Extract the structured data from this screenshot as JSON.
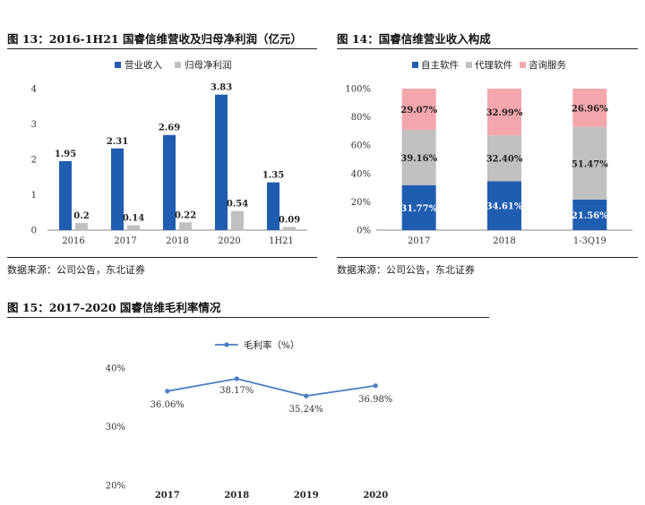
{
  "figure13": {
    "title": "图 13：2016-1H21 国睿信维营收及归母净利润（亿元）",
    "source": "数据来源：公司公告，东北证券"
  },
  "figure14": {
    "title": "图 14：国睿信维营业收入构成",
    "source": "数据来源：公司公告，东北证券"
  },
  "figure15": {
    "title": "图 15：2017-2020 国睿信维毛利率情况"
  },
  "colors": {
    "revenue": "#1f5db0",
    "profit": "#c0c0c0",
    "own_software": "#1f5db0",
    "agency_software": "#c0c0c0",
    "consulting": "#f4a6ad",
    "line": "#4a7fc4"
  },
  "chart_data": [
    {
      "type": "bar",
      "categories": [
        "2016",
        "2017",
        "2018",
        "2020",
        "1H21"
      ],
      "series": [
        {
          "name": "营业收入",
          "values": [
            1.95,
            2.31,
            2.69,
            3.83,
            1.35
          ],
          "labels": [
            "1.95",
            "2.31",
            "2.69",
            "3.83",
            "1.35"
          ]
        },
        {
          "name": "归母净利润",
          "values": [
            0.2,
            0.14,
            0.22,
            0.54,
            0.09
          ],
          "labels": [
            "0.2",
            "0.14",
            "0.22",
            "0.54",
            "0.09"
          ]
        }
      ],
      "ylim": [
        0,
        4
      ],
      "yticks": [
        "0",
        "1",
        "2",
        "3",
        "4"
      ],
      "legend": "top"
    },
    {
      "type": "bar",
      "stacked": true,
      "categories": [
        "2017",
        "2018",
        "1-3Q19"
      ],
      "series": [
        {
          "name": "自主软件",
          "values": [
            31.77,
            34.61,
            21.56
          ],
          "labels": [
            "31.77%",
            "34.61%",
            "21.56%"
          ]
        },
        {
          "name": "代理软件",
          "values": [
            39.16,
            32.4,
            51.47
          ],
          "labels": [
            "39.16%",
            "32.40%",
            "51.47%"
          ]
        },
        {
          "name": "咨询服务",
          "values": [
            29.07,
            32.99,
            26.96
          ],
          "labels": [
            "29.07%",
            "32.99%",
            "26.96%"
          ]
        }
      ],
      "ylim": [
        0,
        100
      ],
      "yticks": [
        "0%",
        "20%",
        "40%",
        "60%",
        "80%",
        "100%"
      ],
      "legend": "top"
    },
    {
      "type": "line",
      "categories": [
        "2017",
        "2018",
        "2019",
        "2020"
      ],
      "series": [
        {
          "name": "毛利率（%）",
          "values": [
            36.06,
            38.17,
            35.24,
            36.98
          ],
          "labels": [
            "36.06%",
            "38.17%",
            "35.24%",
            "36.98%"
          ]
        }
      ],
      "ylim": [
        20,
        40
      ],
      "yticks": [
        "20%",
        "30%",
        "40%"
      ],
      "legend": "top"
    }
  ]
}
